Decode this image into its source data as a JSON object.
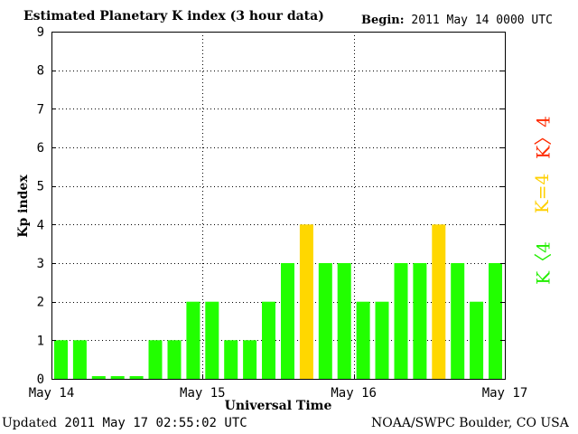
{
  "header": {
    "title": "Estimated Planetary K index (3 hour data)",
    "begin_label": "Begin:",
    "begin_value": "2011 May 14 0000 UTC"
  },
  "footer": {
    "updated_label": "Updated",
    "updated_value": "2011 May 17 02:55:02 UTC",
    "credit": "NOAA/SWPC Boulder, CO USA"
  },
  "legend": {
    "gt4": "K〉4",
    "eq4": "K=4",
    "lt4": "K〈4"
  },
  "colors": {
    "k_below_4": "#22ff00",
    "k_equal_4": "#ffd700",
    "k_above_4": "#ff2a00",
    "legend_below": "#22ee00",
    "legend_equal": "#ffd000",
    "legend_above": "#ff2a00"
  },
  "chart_data": {
    "type": "bar",
    "title": "Estimated Planetary K index (3 hour data)",
    "xlabel": "Universal Time",
    "ylabel": "Kp index",
    "ylim": [
      0,
      9
    ],
    "yticks": [
      "0",
      "1",
      "2",
      "3",
      "4",
      "5",
      "6",
      "7",
      "8",
      "9"
    ],
    "xticks": [
      "May 14",
      "May 15",
      "May 16",
      "May 17"
    ],
    "grid": true,
    "interval_hours": 3,
    "values": [
      1,
      1,
      0,
      0,
      0,
      1,
      1,
      2,
      2,
      1,
      1,
      2,
      3,
      4,
      3,
      3,
      2,
      2,
      3,
      3,
      4,
      3,
      2,
      3
    ]
  }
}
